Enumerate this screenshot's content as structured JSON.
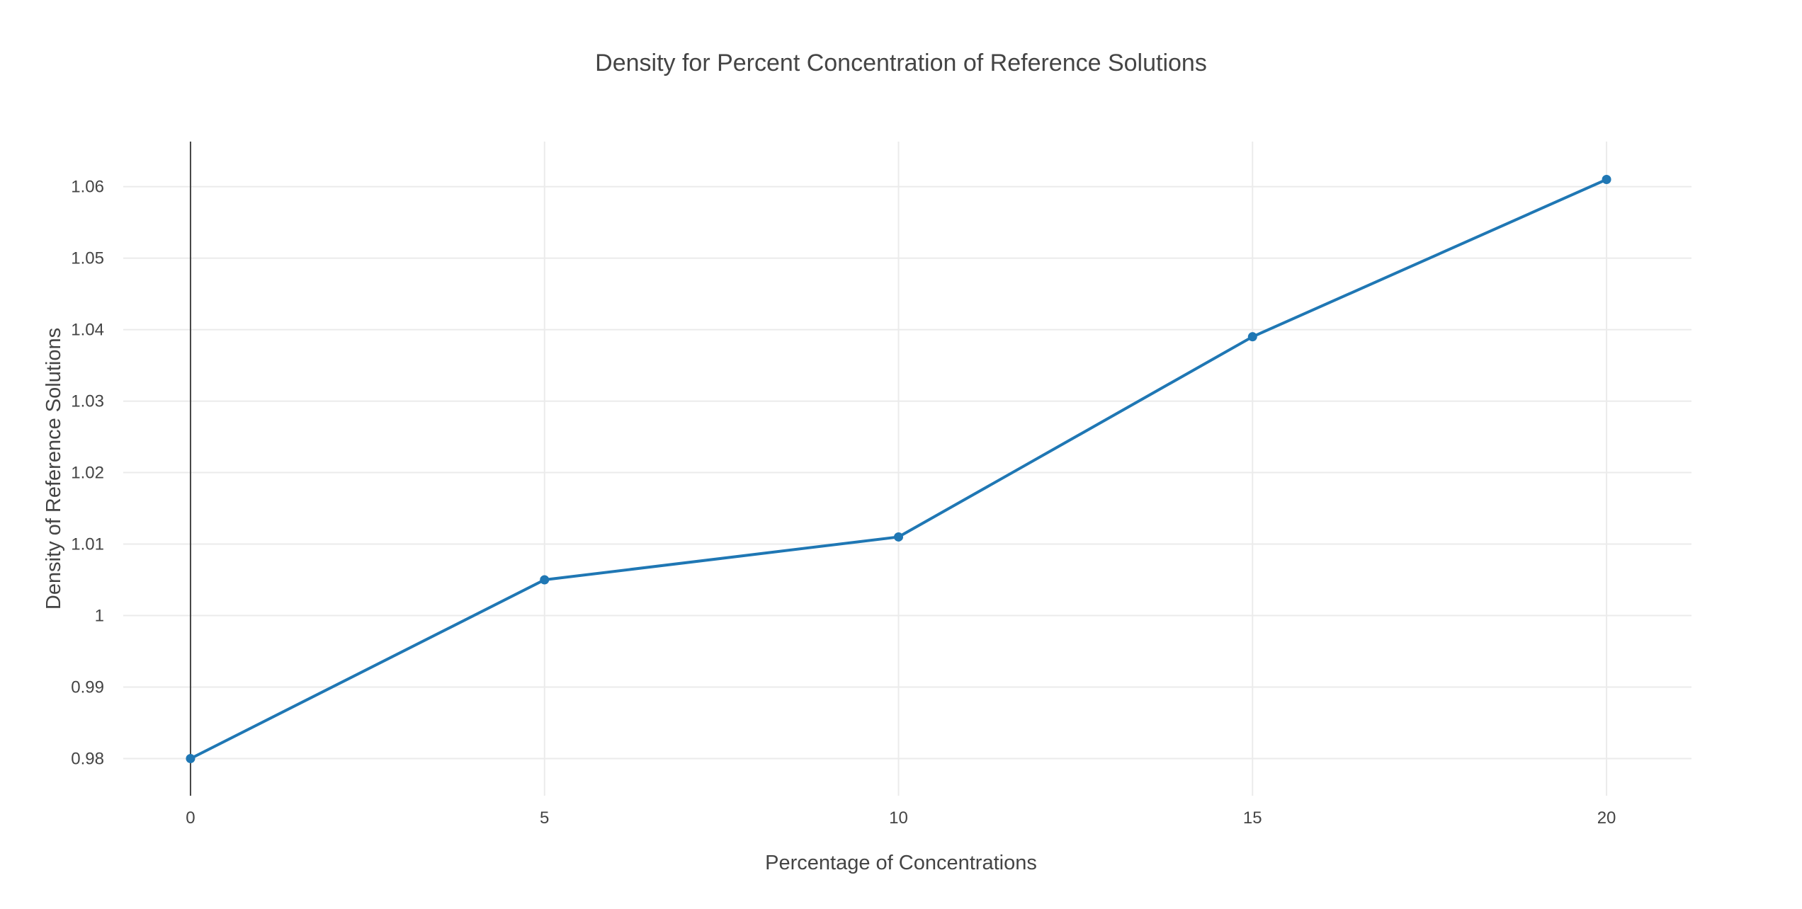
{
  "chart_data": {
    "type": "line",
    "title": "Density for Percent Concentration of Reference Solutions",
    "xlabel": "Percentage of Concentrations",
    "ylabel": "Density of Reference Solutions",
    "x": [
      0,
      5,
      10,
      15,
      20
    ],
    "series": [
      {
        "values": [
          0.98,
          1.005,
          1.011,
          1.039,
          1.061
        ],
        "color": "#1f77b4",
        "mode": "lines+markers"
      }
    ],
    "xlim": [
      -0.95,
      21.2
    ],
    "ylim": [
      0.9748,
      1.0663
    ],
    "x_ticks": [
      0,
      5,
      10,
      15,
      20
    ],
    "x_tick_labels": [
      "0",
      "5",
      "10",
      "15",
      "20"
    ],
    "y_ticks": [
      0.98,
      0.99,
      1.0,
      1.01,
      1.02,
      1.03,
      1.04,
      1.05,
      1.06
    ],
    "y_tick_labels": [
      "0.98",
      "0.99",
      "1",
      "1.01",
      "1.02",
      "1.03",
      "1.04",
      "1.05",
      "1.06"
    ],
    "grid": true,
    "legend": "none"
  }
}
